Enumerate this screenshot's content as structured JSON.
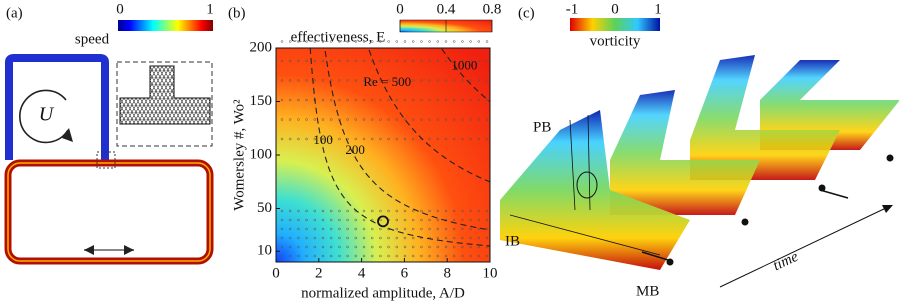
{
  "panel_a": {
    "label": "(a)",
    "colorbar": {
      "title": "speed",
      "ticks": [
        0,
        1
      ]
    },
    "loop_label": "U"
  },
  "chart_data": {
    "type": "heatmap",
    "label": "(b)",
    "title": "effectiveness, E",
    "xlabel": "normalized amplitude, A/D",
    "ylabel": "Womersley #, Wo²",
    "xlim": [
      0,
      10
    ],
    "ylim": [
      0,
      200
    ],
    "xticks": [
      0,
      2,
      4,
      6,
      8,
      10
    ],
    "yticks": [
      10,
      50,
      100,
      150,
      200
    ],
    "colorbar": {
      "lim": [
        0,
        0.8
      ],
      "ticks": [
        0,
        0.4,
        0.8
      ]
    },
    "contours": [
      {
        "level": 100,
        "label": "100"
      },
      {
        "level": 200,
        "label": "200"
      },
      {
        "level": 500,
        "label": "Re = 500"
      },
      {
        "level": 1000,
        "label": "1000"
      }
    ],
    "highlight_point": {
      "x": 5,
      "y": 38
    }
  },
  "panel_c": {
    "label": "(c)",
    "colorbar": {
      "title": "vorticity",
      "ticks": [
        -1,
        0,
        1
      ]
    },
    "branches": [
      "PB",
      "IB",
      "MB"
    ],
    "axis_label": "time"
  }
}
